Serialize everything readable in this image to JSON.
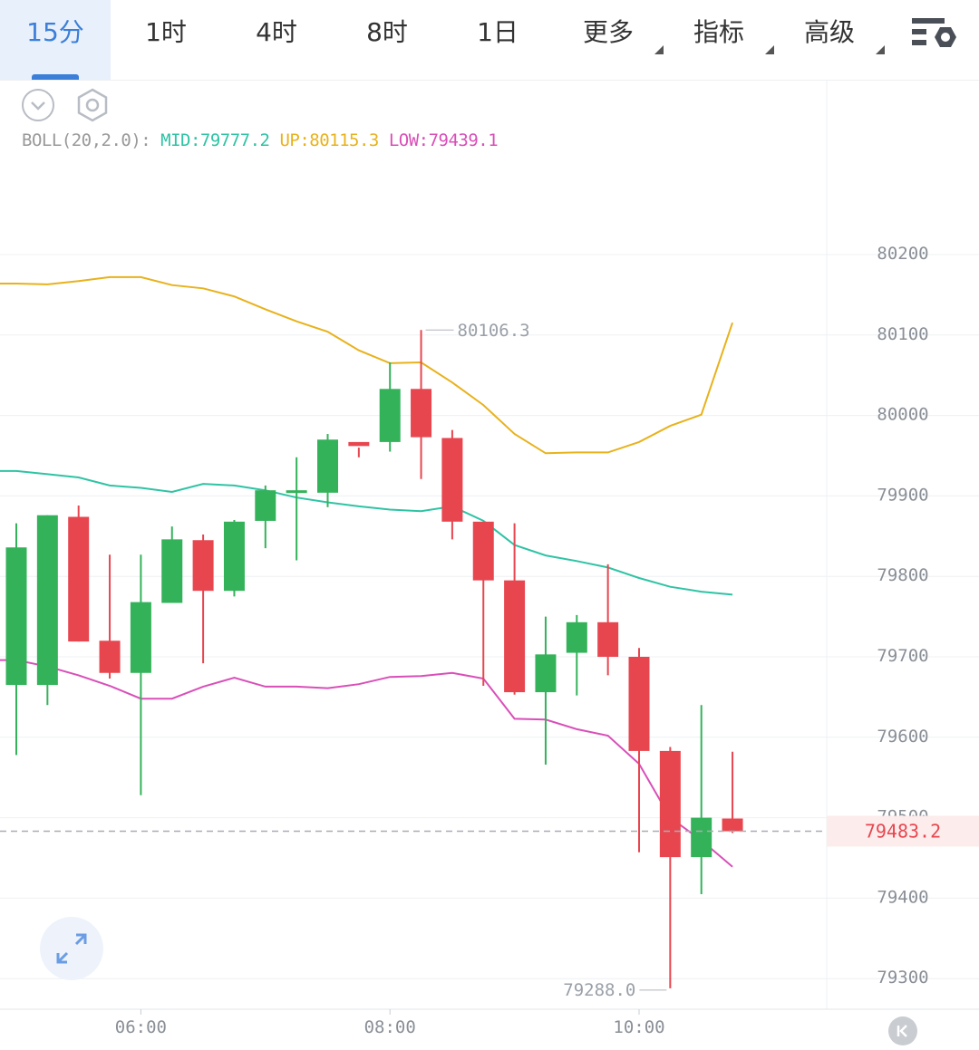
{
  "tabs": [
    {
      "label": "15分",
      "active": true,
      "dropdown": false
    },
    {
      "label": "1时",
      "active": false,
      "dropdown": false
    },
    {
      "label": "4时",
      "active": false,
      "dropdown": false
    },
    {
      "label": "8时",
      "active": false,
      "dropdown": false
    },
    {
      "label": "1日",
      "active": false,
      "dropdown": false
    },
    {
      "label": "更多",
      "active": false,
      "dropdown": true
    },
    {
      "label": "指标",
      "active": false,
      "dropdown": true
    },
    {
      "label": "高级",
      "active": false,
      "dropdown": true
    }
  ],
  "toolbar": {
    "collapse_icon": "chevron-down-icon",
    "settings_icon": "hexagon-settings-icon",
    "chart_settings_icon": "list-gear-icon"
  },
  "indicator": {
    "name": "BOLL(20,2.0):",
    "mid": "MID:79777.2",
    "up": "UP:80115.3",
    "low": "LOW:79439.1"
  },
  "colors": {
    "up_candle": "#34b25a",
    "down_candle": "#e8464f",
    "mid": "#2fc3a4",
    "up": "#e8b21c",
    "low": "#d94fb8",
    "accent": "#3b7fd9"
  },
  "chart_data": {
    "type": "candlestick",
    "ylim": [
      79265,
      80295
    ],
    "y_ticks": [
      "80200",
      "80100",
      "80000",
      "79900",
      "79800",
      "79700",
      "79600",
      "79500",
      "79400",
      "79300"
    ],
    "x_ticks": [
      "06:00",
      "08:00",
      "10:00"
    ],
    "candles": [
      {
        "o": 79665,
        "h": 79866,
        "l": 79578,
        "c": 79836
      },
      {
        "o": 79665,
        "h": 79876,
        "l": 79640,
        "c": 79876
      },
      {
        "o": 79874,
        "h": 79888,
        "l": 79719,
        "c": 79719
      },
      {
        "o": 79720,
        "h": 79827,
        "l": 79673,
        "c": 79680
      },
      {
        "o": 79680,
        "h": 79827,
        "l": 79528,
        "c": 79768
      },
      {
        "o": 79767,
        "h": 79862,
        "l": 79767,
        "c": 79846
      },
      {
        "o": 79845,
        "h": 79852,
        "l": 79692,
        "c": 79782
      },
      {
        "o": 79782,
        "h": 79870,
        "l": 79775,
        "c": 79868
      },
      {
        "o": 79869,
        "h": 79913,
        "l": 79835,
        "c": 79907
      },
      {
        "o": 79907,
        "h": 79948,
        "l": 79820,
        "c": 79907
      },
      {
        "o": 79904,
        "h": 79977,
        "l": 79886,
        "c": 79970
      },
      {
        "o": 79967,
        "h": 79960,
        "l": 79948,
        "c": 79962
      },
      {
        "o": 79967,
        "h": 80066,
        "l": 79955,
        "c": 80033
      },
      {
        "o": 80033,
        "h": 80106.3,
        "l": 79921,
        "c": 79973
      },
      {
        "o": 79972,
        "h": 79982,
        "l": 79846,
        "c": 79868
      },
      {
        "o": 79868,
        "h": 79866,
        "l": 79664,
        "c": 79795
      },
      {
        "o": 79795,
        "h": 79866,
        "l": 79653,
        "c": 79656
      },
      {
        "o": 79656,
        "h": 79750,
        "l": 79566,
        "c": 79703
      },
      {
        "o": 79705,
        "h": 79752,
        "l": 79652,
        "c": 79743
      },
      {
        "o": 79743,
        "h": 79815,
        "l": 79677,
        "c": 79700
      },
      {
        "o": 79700,
        "h": 79711,
        "l": 79457,
        "c": 79583
      },
      {
        "o": 79583,
        "h": 79588,
        "l": 79288,
        "c": 79451
      },
      {
        "o": 79451,
        "h": 79640,
        "l": 79405,
        "c": 79500
      },
      {
        "o": 79499,
        "h": 79582,
        "l": 79481,
        "c": 79483.2
      }
    ],
    "series": [
      {
        "name": "UP",
        "values": [
          80164,
          80163,
          80167,
          80172,
          80172,
          80162,
          80158,
          80148,
          80132,
          80117,
          80104,
          80081,
          80065,
          80066,
          80041,
          80013,
          79977,
          79953,
          79954,
          79954,
          79967,
          79987,
          80001,
          80115.3
        ]
      },
      {
        "name": "MID",
        "values": [
          79931,
          79927,
          79923,
          79913,
          79910,
          79905,
          79915,
          79913,
          79907,
          79898,
          79892,
          79887,
          79883,
          79881,
          79887,
          79869,
          79839,
          79826,
          79819,
          79811,
          79798,
          79787,
          79781,
          79777.2
        ]
      },
      {
        "name": "LOW",
        "values": [
          79696,
          79688,
          79677,
          79664,
          79648,
          79648,
          79663,
          79674,
          79663,
          79663,
          79661,
          79666,
          79675,
          79676,
          79680,
          79673,
          79623,
          79622,
          79610,
          79602,
          79567,
          79500,
          79472,
          79439.1
        ]
      }
    ],
    "annotations": {
      "high_label": "80106.3",
      "low_label": "79288.0",
      "last_price": "79483.2"
    }
  }
}
